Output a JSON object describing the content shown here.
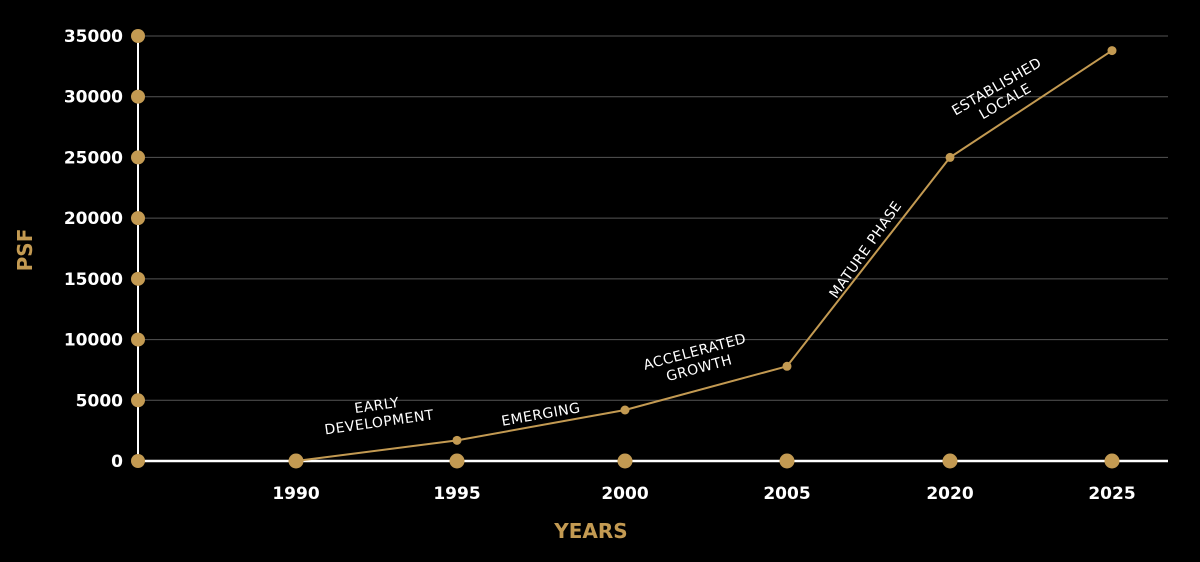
{
  "chart_data": {
    "type": "line",
    "title": "",
    "xlabel": "YEARS",
    "ylabel": "PSF",
    "categories": [
      "1990",
      "1995",
      "2000",
      "2005",
      "2020",
      "2025"
    ],
    "series": [
      {
        "name": "PSF",
        "values": [
          0,
          1700,
          4200,
          7800,
          25000,
          33800
        ]
      }
    ],
    "ylim": [
      0,
      35000
    ],
    "yticks": [
      0,
      5000,
      10000,
      15000,
      20000,
      25000,
      30000,
      35000
    ],
    "grid": true,
    "annotations": [
      {
        "lines": [
          "EARLY",
          "DEVELOPMENT"
        ],
        "segment": "1990-1995"
      },
      {
        "lines": [
          "EMERGING"
        ],
        "segment": "1995-2000"
      },
      {
        "lines": [
          "ACCELERATED",
          "GROWTH"
        ],
        "segment": "2000-2005"
      },
      {
        "lines": [
          "MATURE PHASE"
        ],
        "segment": "2005-2020"
      },
      {
        "lines": [
          "ESTABLISHED",
          "LOCALE"
        ],
        "segment": "2020-2025"
      }
    ],
    "colors": {
      "line": "#c39a52",
      "grid": "#555555",
      "axis": "#ffffff",
      "text": "#ffffff"
    }
  }
}
